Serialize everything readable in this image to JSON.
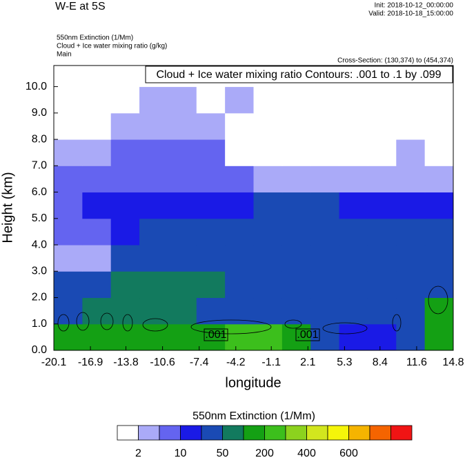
{
  "chart_data": {
    "type": "contour",
    "title": "W-E at 5S",
    "init": "Init: 2018-10-12_00:00:00",
    "valid": "Valid: 2018-10-18_15:00:00",
    "field_title": "550nm Extinction   (1/Mm)",
    "contour_title": "Cloud + Ice water mixing ratio   (g/kg)",
    "domain": "Main",
    "cross_section": "Cross-Section: (130,374) to (454,374)",
    "contour_info": "Cloud + Ice water mixing ratio Contours: .001 to .1 by .099",
    "contour_labels": [
      ".001",
      ".001"
    ],
    "ylabel": "Height (km)",
    "xlabel": "longitude",
    "xlim": [
      -20.1,
      14.8
    ],
    "ylim": [
      0,
      10.8
    ],
    "xticks": [
      -20.1,
      -16.9,
      -13.8,
      -10.6,
      -7.4,
      -4.2,
      -1.1,
      2.1,
      5.3,
      8.4,
      11.6,
      14.8
    ],
    "yticks": [
      {
        "value": 0,
        "label": "0.0"
      },
      {
        "value": 1,
        "label": "1.0"
      },
      {
        "value": 2,
        "label": "2.0"
      },
      {
        "value": 3,
        "label": "3.0"
      },
      {
        "value": 4,
        "label": "4.0"
      },
      {
        "value": 5,
        "label": "5.0"
      },
      {
        "value": 6,
        "label": "6.0"
      },
      {
        "value": 7,
        "label": "7.0"
      },
      {
        "value": 8,
        "label": "8.0"
      },
      {
        "value": 9,
        "label": "9.0"
      },
      {
        "value": 10,
        "label": "10.0"
      }
    ],
    "colorbar_title": "550nm Extinction  (1/Mm)",
    "colors": [
      "#ffffff",
      "#aaaaf8",
      "#6464f0",
      "#1a1ae6",
      "#1a4ab4",
      "#127a5e",
      "#14a014",
      "#3cbf1c",
      "#8cd21e",
      "#d2e61e",
      "#f5f50a",
      "#f5b400",
      "#f56400",
      "#f01414"
    ],
    "levels": [
      2,
      null,
      10,
      null,
      50,
      null,
      200,
      null,
      400,
      null,
      600,
      null
    ],
    "field": [
      [
        6,
        6,
        6,
        6,
        6,
        6,
        7,
        7,
        6,
        4,
        3,
        3,
        4,
        6
      ],
      [
        4,
        5,
        5,
        5,
        5,
        4,
        4,
        4,
        4,
        4,
        4,
        4,
        4,
        6
      ],
      [
        4,
        4,
        5,
        5,
        5,
        5,
        4,
        4,
        4,
        4,
        4,
        4,
        4,
        4
      ],
      [
        1,
        1,
        4,
        4,
        4,
        4,
        4,
        4,
        4,
        4,
        4,
        4,
        4,
        4
      ],
      [
        2,
        2,
        3,
        4,
        4,
        4,
        4,
        4,
        4,
        4,
        4,
        4,
        4,
        4
      ],
      [
        2,
        3,
        3,
        3,
        3,
        3,
        3,
        4,
        4,
        4,
        3,
        3,
        3,
        3
      ],
      [
        2,
        2,
        2,
        2,
        2,
        2,
        2,
        1,
        1,
        1,
        1,
        1,
        1,
        1
      ],
      [
        1,
        1,
        2,
        2,
        2,
        2,
        0,
        0,
        0,
        0,
        0,
        0,
        1,
        0
      ],
      [
        0,
        0,
        1,
        1,
        1,
        1,
        0,
        0,
        0,
        0,
        0,
        0,
        0,
        0
      ],
      [
        0,
        0,
        0,
        1,
        1,
        0,
        1,
        0,
        0,
        0,
        0,
        0,
        0,
        0
      ],
      [
        0,
        0,
        0,
        0,
        0,
        0,
        0,
        0,
        0,
        0,
        0,
        0,
        0,
        0
      ]
    ]
  }
}
